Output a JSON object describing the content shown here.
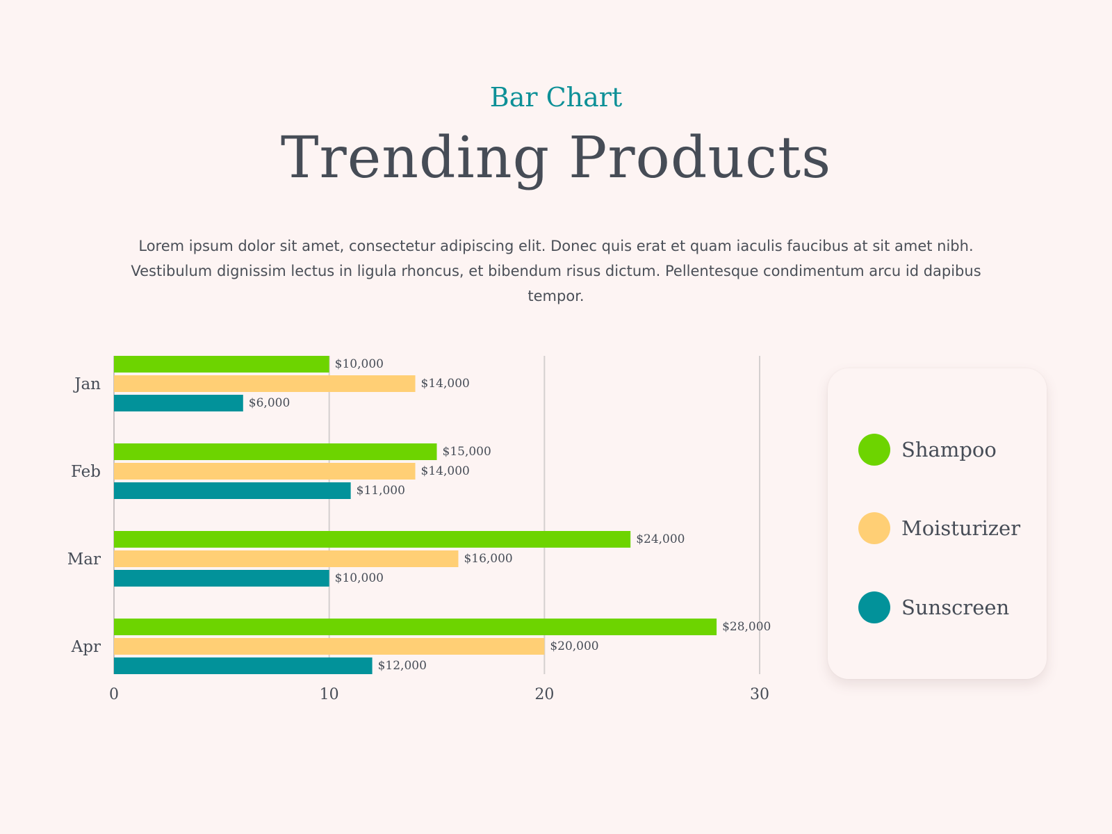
{
  "header": {
    "eyebrow": "Bar Chart",
    "title": "Trending Products",
    "description": "Lorem ipsum dolor sit amet, consectetur adipiscing elit. Donec quis erat et quam iaculis faucibus at sit amet nibh. Vestibulum dignissim lectus in ligula rhoncus, et bibendum risus dictum. Pellentesque condimentum arcu id dapibus tempor."
  },
  "legend": {
    "items": [
      {
        "label": "Shampoo",
        "color": "#6dd400"
      },
      {
        "label": "Moisturizer",
        "color": "#ffcf75"
      },
      {
        "label": "Sunscreen",
        "color": "#02929a"
      }
    ]
  },
  "chart_data": {
    "type": "bar",
    "orientation": "horizontal",
    "categories": [
      "Jan",
      "Feb",
      "Mar",
      "Apr"
    ],
    "series": [
      {
        "name": "Shampoo",
        "color": "#6dd400",
        "values": [
          10,
          15,
          24,
          28
        ],
        "labels": [
          "$10,000",
          "$15,000",
          "$24,000",
          "$28,000"
        ]
      },
      {
        "name": "Moisturizer",
        "color": "#ffcf75",
        "values": [
          14,
          14,
          16,
          20
        ],
        "labels": [
          "$14,000",
          "$14,000",
          "$16,000",
          "$20,000"
        ]
      },
      {
        "name": "Sunscreen",
        "color": "#02929a",
        "values": [
          6,
          11,
          10,
          12
        ],
        "labels": [
          "$6,000",
          "$11,000",
          "$10,000",
          "$12,000"
        ]
      }
    ],
    "xlim": [
      0,
      30
    ],
    "xticks": [
      "0",
      "10",
      "20",
      "30"
    ],
    "grid": true,
    "legend_position": "right"
  }
}
